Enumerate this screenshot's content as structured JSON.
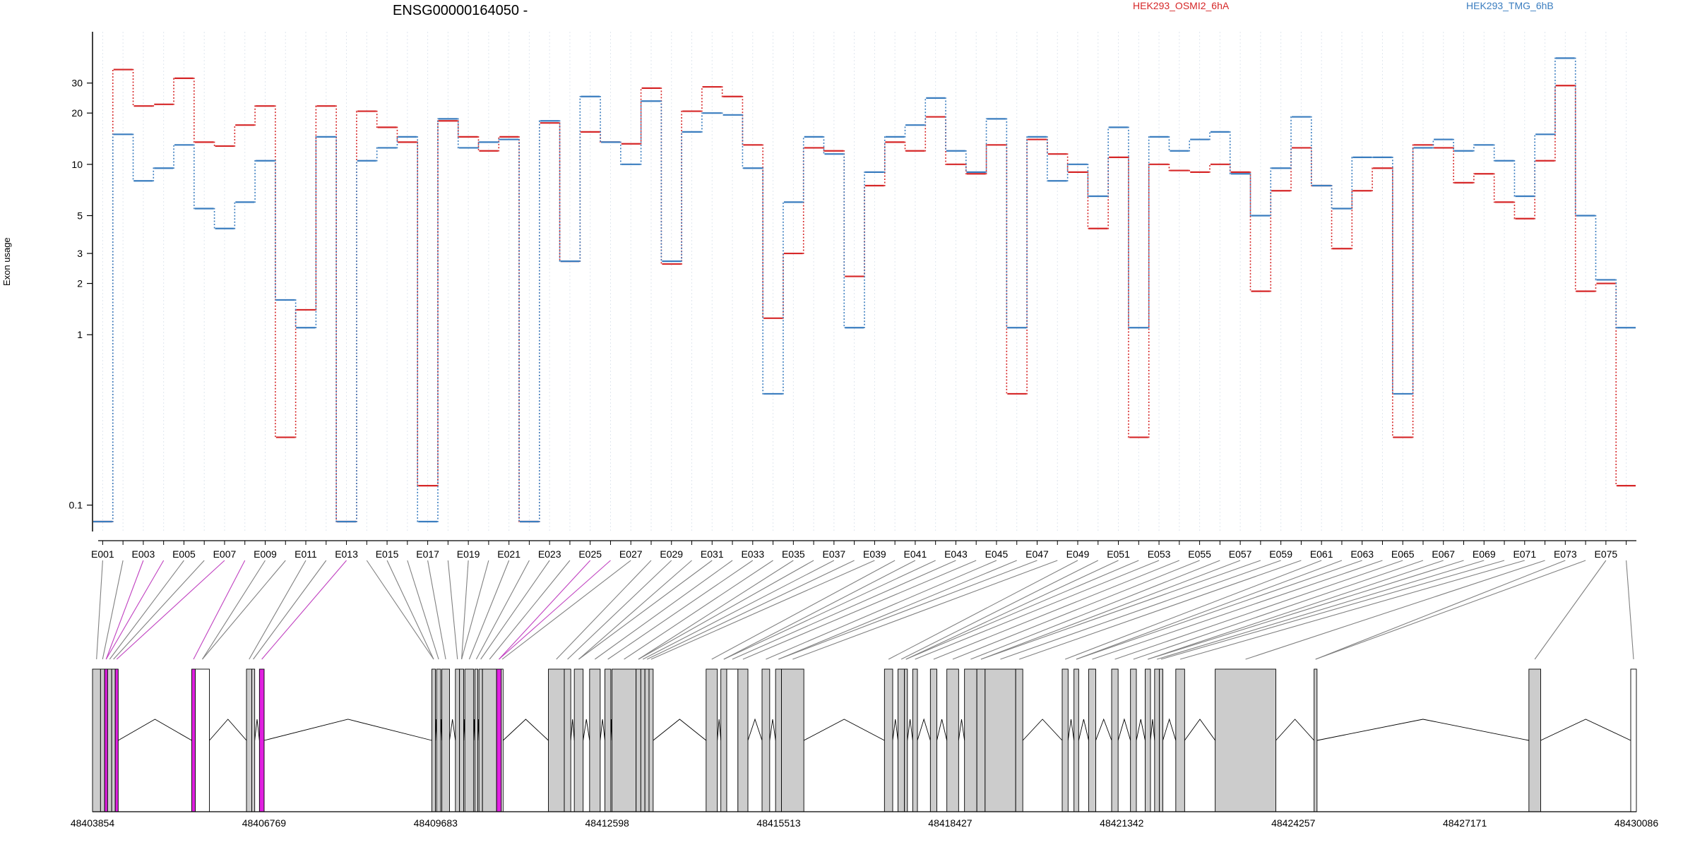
{
  "chart_data": {
    "type": "line",
    "title": "ENSG00000164050 -",
    "ylabel": "Exon usage",
    "yscale": "log",
    "ylim": [
      0.07,
      60
    ],
    "yticks": [
      0.1,
      1,
      2,
      3,
      5,
      10,
      20,
      30
    ],
    "ytick_labels": [
      "0.1",
      "1",
      "2",
      "3",
      "5",
      "10",
      "20",
      "30"
    ],
    "exons": [
      "E001",
      "E002",
      "E003",
      "E004",
      "E005",
      "E006",
      "E007",
      "E008",
      "E009",
      "E010",
      "E011",
      "E012",
      "E013",
      "E014",
      "E015",
      "E016",
      "E017",
      "E018",
      "E019",
      "E020",
      "E021",
      "E022",
      "E023",
      "E024",
      "E025",
      "E026",
      "E027",
      "E028",
      "E029",
      "E030",
      "E031",
      "E032",
      "E033",
      "E034",
      "E035",
      "E036",
      "E037",
      "E038",
      "E039",
      "E040",
      "E041",
      "E042",
      "E043",
      "E044",
      "E045",
      "E046",
      "E047",
      "E048",
      "E049",
      "E050",
      "E051",
      "E052",
      "E053",
      "E054",
      "E055",
      "E056",
      "E057",
      "E058",
      "E059",
      "E060",
      "E061",
      "E062",
      "E063",
      "E064",
      "E065",
      "E066",
      "E067",
      "E068",
      "E069",
      "E070",
      "E071",
      "E072",
      "E073",
      "E074",
      "E075",
      "E076"
    ],
    "series": [
      {
        "name": "HEK293_OSMI2_6hA",
        "color": "#d62728",
        "values": [
          0.08,
          36,
          22,
          22.5,
          32,
          13.5,
          12.8,
          17,
          22,
          0.25,
          1.4,
          22,
          0.08,
          20.5,
          16.5,
          13.5,
          0.13,
          18,
          14.5,
          12,
          14.5,
          0.08,
          17.5,
          2.7,
          15.5,
          13.5,
          13.2,
          28,
          2.6,
          20.5,
          28.5,
          25,
          13,
          1.25,
          3,
          12.5,
          12,
          2.2,
          7.5,
          13.5,
          12,
          19,
          10,
          8.8,
          13,
          0.45,
          14,
          11.5,
          9,
          4.2,
          11,
          0.25,
          10,
          9.2,
          9,
          10,
          9,
          1.8,
          7,
          12.5,
          7.5,
          3.2,
          7,
          9.5,
          0.25,
          13,
          12.5,
          7.8,
          8.8,
          6,
          4.8,
          10.5,
          29,
          1.8,
          2,
          0.13
        ]
      },
      {
        "name": "HEK293_TMG_6hB",
        "color": "#3a7dbf",
        "values": [
          0.08,
          15,
          8,
          9.5,
          13,
          5.5,
          4.2,
          6,
          10.5,
          1.6,
          1.1,
          14.5,
          0.08,
          10.5,
          12.5,
          14.5,
          0.08,
          18.5,
          12.5,
          13.5,
          14,
          0.08,
          18,
          2.7,
          25,
          13.5,
          10,
          23.5,
          2.7,
          15.5,
          20,
          19.5,
          9.5,
          0.45,
          6,
          14.5,
          11.5,
          1.1,
          9,
          14.5,
          17,
          24.5,
          12,
          9,
          18.5,
          1.1,
          14.5,
          8,
          10,
          6.5,
          16.5,
          1.1,
          14.5,
          12,
          14,
          15.5,
          8.8,
          5,
          9.5,
          19,
          7.5,
          5.5,
          11,
          11,
          0.45,
          12.5,
          14,
          12,
          13,
          10.5,
          6.5,
          15,
          42,
          5,
          2.1,
          1.1
        ]
      }
    ],
    "genomic_ticks": [
      "48403854",
      "48406769",
      "48409683",
      "48412598",
      "48415513",
      "48418427",
      "48421342",
      "48424257",
      "48427171",
      "48430086"
    ],
    "genomic_range": [
      48403854,
      48430086
    ]
  }
}
